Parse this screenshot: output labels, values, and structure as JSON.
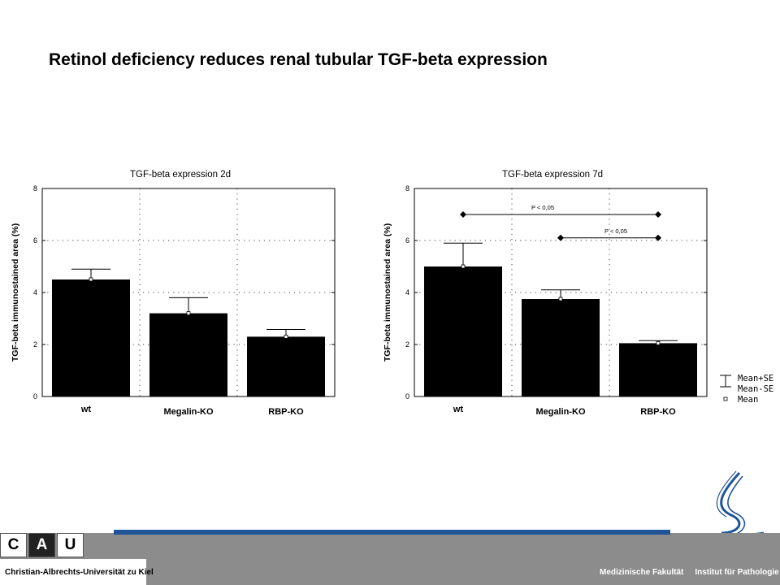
{
  "slide": {
    "title": "Retinol deficiency reduces renal tubular TGF-beta expression"
  },
  "colors": {
    "bar": "#000000",
    "footer_gray": "#8c8c8c",
    "footer_blue": "#1f5596",
    "logo_blue": "#1f5596"
  },
  "chart_data": [
    {
      "type": "bar",
      "title": "TGF-beta expression 2d",
      "ylabel": "TGF-beta immunostained area (%)",
      "xlabel": "",
      "categories": [
        "wt",
        "Megalin-KO",
        "RBP-KO"
      ],
      "values": [
        4.5,
        3.2,
        2.3
      ],
      "se": [
        0.4,
        0.6,
        0.28
      ],
      "ylim": [
        0,
        8
      ],
      "yticks": [
        0,
        2,
        4,
        6,
        8
      ],
      "grid": "dotted",
      "significance": []
    },
    {
      "type": "bar",
      "title": "TGF-beta expression 7d",
      "ylabel": "TGF-beta immunostained area (%)",
      "xlabel": "",
      "categories": [
        "wt",
        "Megalin-KO",
        "RBP-KO"
      ],
      "values": [
        5.0,
        3.75,
        2.05
      ],
      "se": [
        0.9,
        0.35,
        0.1
      ],
      "ylim": [
        0,
        8
      ],
      "yticks": [
        0,
        2,
        4,
        6,
        8
      ],
      "grid": "dotted",
      "significance": [
        {
          "from": 0,
          "to": 2,
          "y": 7.0,
          "label": "P < 0,05"
        },
        {
          "from": 1,
          "to": 2,
          "y": 6.1,
          "label": "P < 0,05"
        }
      ]
    }
  ],
  "legend": {
    "items": [
      {
        "label": "Mean+SE",
        "icon": "error-bar-icon"
      },
      {
        "label": "Mean-SE",
        "icon": "error-bar-icon"
      },
      {
        "label": "Mean",
        "icon": "mean-square-icon"
      }
    ]
  },
  "footer": {
    "cau_letters": [
      "C",
      "A",
      "U"
    ],
    "university": "Christian-Albrechts-Universität zu Kiel",
    "faculty": "Medizinische Fakultät",
    "institute": "Institut für Pathologie"
  }
}
